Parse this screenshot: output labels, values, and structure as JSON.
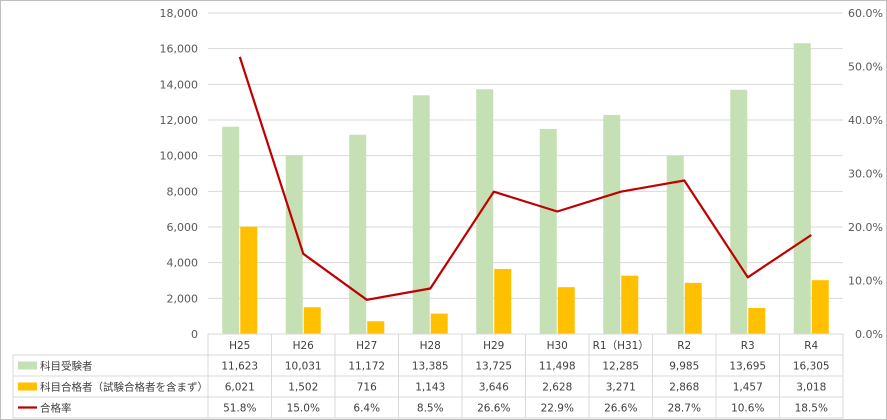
{
  "chart_data": {
    "type": "bar",
    "categories": [
      "H25",
      "H26",
      "H27",
      "H28",
      "H29",
      "H30",
      "R1（H31）",
      "R2",
      "R3",
      "R4"
    ],
    "series": [
      {
        "name": "科目受験者",
        "kind": "bar",
        "axis": "left",
        "color": "#c5e0b4",
        "values": [
          11623,
          10031,
          11172,
          13385,
          13725,
          11498,
          12285,
          9985,
          13695,
          16305
        ],
        "labels": [
          "11,623",
          "10,031",
          "11,172",
          "13,385",
          "13,725",
          "11,498",
          "12,285",
          "9,985",
          "13,695",
          "16,305"
        ]
      },
      {
        "name": "科目合格者（試験合格者を含まず）",
        "kind": "bar",
        "axis": "left",
        "color": "#ffc000",
        "values": [
          6021,
          1502,
          716,
          1143,
          3646,
          2628,
          3271,
          2868,
          1457,
          3018
        ],
        "labels": [
          "6,021",
          "1,502",
          "716",
          "1,143",
          "3,646",
          "2,628",
          "3,271",
          "2,868",
          "1,457",
          "3,018"
        ]
      },
      {
        "name": "合格率",
        "kind": "line",
        "axis": "right",
        "color": "#c00000",
        "values": [
          51.8,
          15.0,
          6.4,
          8.5,
          26.6,
          22.9,
          26.6,
          28.7,
          10.6,
          18.5
        ],
        "labels": [
          "51.8%",
          "15.0%",
          "6.4%",
          "8.5%",
          "26.6%",
          "22.9%",
          "26.6%",
          "28.7%",
          "10.6%",
          "18.5%"
        ]
      }
    ],
    "y_left": {
      "min": 0,
      "max": 18000,
      "ticks": [
        "0",
        "2,000",
        "4,000",
        "6,000",
        "8,000",
        "10,000",
        "12,000",
        "14,000",
        "16,000",
        "18,000"
      ]
    },
    "y_right": {
      "min": 0,
      "max": 60,
      "ticks": [
        "0.0%",
        "10.0%",
        "20.0%",
        "30.0%",
        "40.0%",
        "50.0%",
        "60.0%"
      ]
    },
    "grid": true,
    "legend": "data-table"
  }
}
